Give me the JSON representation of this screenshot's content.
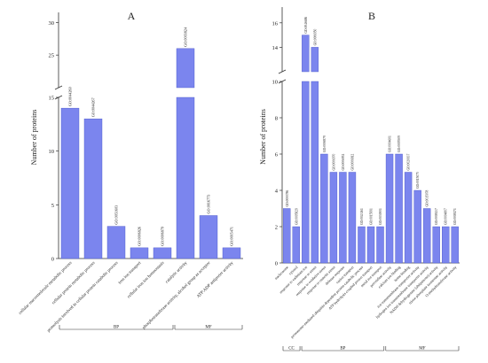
{
  "colors": {
    "bar": "#7b85ee",
    "bar_stroke": "#4a55c8",
    "axis": "#333333"
  },
  "chart_data": [
    {
      "panel": "A",
      "type": "bar",
      "ylabel": "Number of proteins",
      "y_break": [
        15,
        20
      ],
      "ylim": [
        0,
        31
      ],
      "y_ticks": [
        0,
        5,
        10,
        15,
        25,
        30
      ],
      "categories": [
        "cellular macromolecule metabolic process",
        "cellular protein metabolic process",
        "proteolysis involved in cellular protein catabolic process",
        "iron ion transport",
        "cellular iron ion homeostasis",
        "catalytic activity",
        "phosphotransferase activity, alcohol group as acceptor",
        "ATP:ADP antiporter activity"
      ],
      "go_ids": [
        "GO:0044260",
        "GO:0044267",
        "GO:0051603",
        "GO:0006826",
        "GO:0006879",
        "GO:0003824",
        "GO:0016773",
        "GO:0005471"
      ],
      "values": [
        14,
        13,
        3,
        1,
        1,
        26,
        4,
        1
      ],
      "groups": [
        {
          "label": "BP",
          "start": 0,
          "end": 4
        },
        {
          "label": "MF",
          "start": 5,
          "end": 7
        }
      ]
    },
    {
      "panel": "B",
      "type": "bar",
      "ylabel": "Number of proteins",
      "y_break": [
        10,
        12
      ],
      "ylim": [
        0,
        17
      ],
      "y_ticks": [
        0,
        2,
        4,
        6,
        8,
        10,
        14,
        16
      ],
      "categories": [
        "nucleosome",
        "cytosol",
        "response to cadmium ion",
        "response to stress",
        "response to oxidative stress",
        "response to osmotic stress",
        "defense response",
        "cation transport",
        "proteasome-mediated ubiquitin-dependent protein catabolic process",
        "ATP hydrolysis coupled proton transport",
        "metal ion transport",
        "peroxidase activity",
        "calcium ion binding",
        "heme binding",
        "ion transmembrane transporter activity",
        "hydrogen ion transmembrane transporter activity",
        "NADH dehydrogenase (ubiquinone) activity",
        "triose-phosphate isomerase activity",
        "O-methyltransferase activity"
      ],
      "go_ids": [
        "GO:0000786",
        "GO:0005829",
        "GO:0046686",
        "GO:0006950",
        "GO:0006979",
        "GO:0006970",
        "GO:0006952",
        "GO:0006812",
        "GO:0043161",
        "GO:0015991",
        "GO:0030001",
        "GO:0004601",
        "GO:0005509",
        "GO:0020037",
        "GO:0015075",
        "GO:0015078",
        "GO:0008137",
        "GO:0004807",
        "GO:0008171"
      ],
      "values": [
        3,
        2,
        15,
        14,
        6,
        5,
        5,
        5,
        2,
        2,
        2,
        6,
        6,
        5,
        4,
        3,
        2,
        2,
        2
      ],
      "groups": [
        {
          "label": "CC",
          "start": 0,
          "end": 1
        },
        {
          "label": "BP",
          "start": 2,
          "end": 10
        },
        {
          "label": "MF",
          "start": 11,
          "end": 18
        }
      ]
    }
  ]
}
